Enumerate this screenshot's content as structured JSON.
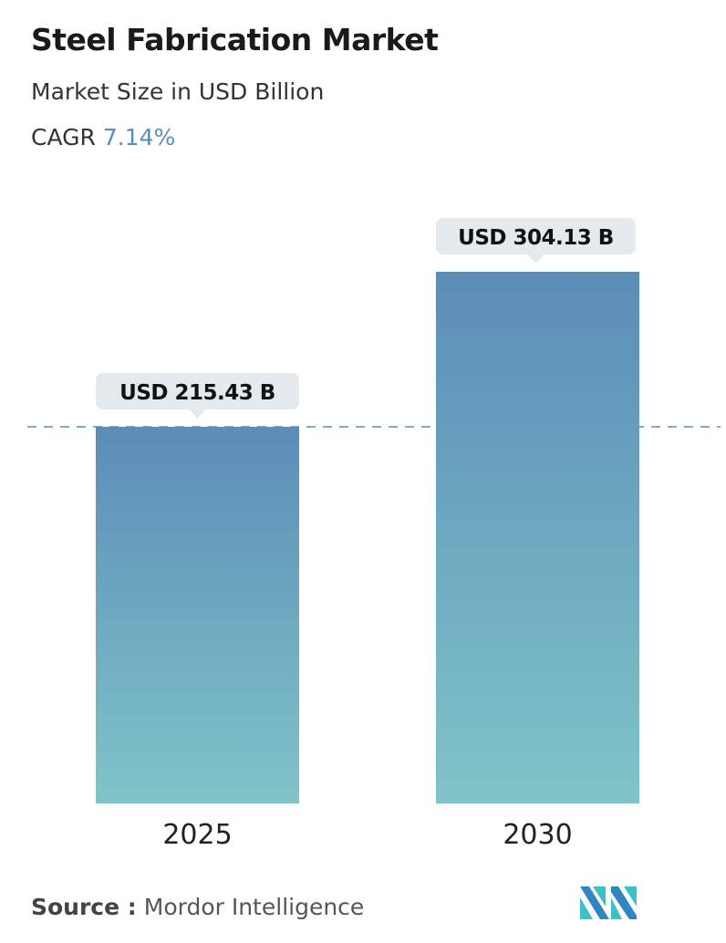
{
  "header": {
    "title": "Steel Fabrication Market",
    "subtitle": "Market Size in USD Billion",
    "cagr_label": "CAGR",
    "cagr_value": "7.14%"
  },
  "chart_data": {
    "type": "bar",
    "categories": [
      "2025",
      "2030"
    ],
    "values": [
      215.43,
      304.13
    ],
    "data_labels": [
      "USD 215.43 B",
      "USD 304.13 B"
    ],
    "reference_line": 215.43,
    "grid": false,
    "colors": {
      "bar_top": "#5b8db8",
      "bar_bottom": "#80c4c8",
      "label_bg": "#e3e9ec",
      "accent": "#5b8db8"
    }
  },
  "footer": {
    "source_label": "Source :",
    "source_value": "Mordor Intelligence",
    "logo_text": "MI"
  }
}
